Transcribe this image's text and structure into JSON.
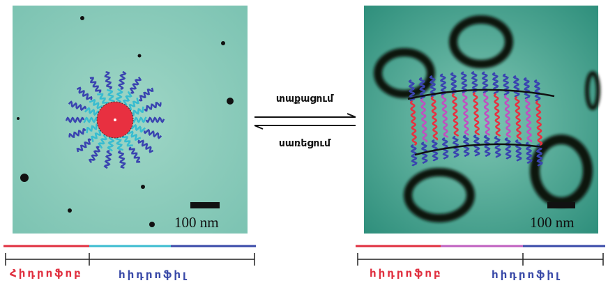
{
  "left_panel": {
    "scale_bar": "100 nm"
  },
  "right_panel": {
    "scale_bar": "100 nm"
  },
  "arrows": {
    "forward": "տաքացում",
    "backward": "սառեցում"
  },
  "left_legend": {
    "hydrophobic": "Հիդրոֆոբ",
    "hydrophilic": "հիդրոֆիլ"
  },
  "right_legend": {
    "hydrophobic": "հիդրոֆոբ",
    "hydrophilic": "հիդրոֆիլ"
  }
}
